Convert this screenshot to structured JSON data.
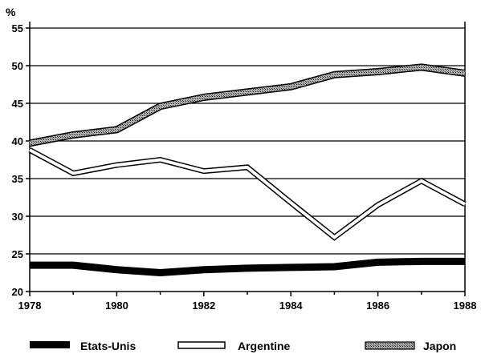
{
  "chart_data": {
    "type": "line",
    "title": "",
    "ylabel": "%",
    "xlabel": "",
    "x": [
      1978,
      1979,
      1980,
      1981,
      1982,
      1983,
      1984,
      1985,
      1986,
      1987,
      1988
    ],
    "xticks": [
      "1978",
      "1980",
      "1982",
      "1984",
      "1986",
      "1988"
    ],
    "yticks": [
      "20",
      "25",
      "30",
      "35",
      "40",
      "45",
      "50",
      "55"
    ],
    "xlim": [
      1978,
      1988
    ],
    "ylim": [
      20,
      55
    ],
    "grid": "horizontal",
    "legend_position": "bottom",
    "series": [
      {
        "name": "Etats-Unis",
        "style": "solid-black",
        "values": [
          23.5,
          23.5,
          22.9,
          22.5,
          22.9,
          23.1,
          23.2,
          23.3,
          23.9,
          24.0,
          24.0
        ]
      },
      {
        "name": "Argentine",
        "style": "hollow-white",
        "values": [
          38.8,
          35.7,
          36.8,
          37.5,
          36.0,
          36.5,
          31.8,
          27.2,
          31.5,
          34.7,
          31.6
        ]
      },
      {
        "name": "Japon",
        "style": "hatched-gray",
        "values": [
          39.7,
          40.8,
          41.5,
          44.6,
          45.8,
          46.5,
          47.2,
          48.8,
          49.2,
          49.8,
          49.0
        ]
      }
    ]
  }
}
